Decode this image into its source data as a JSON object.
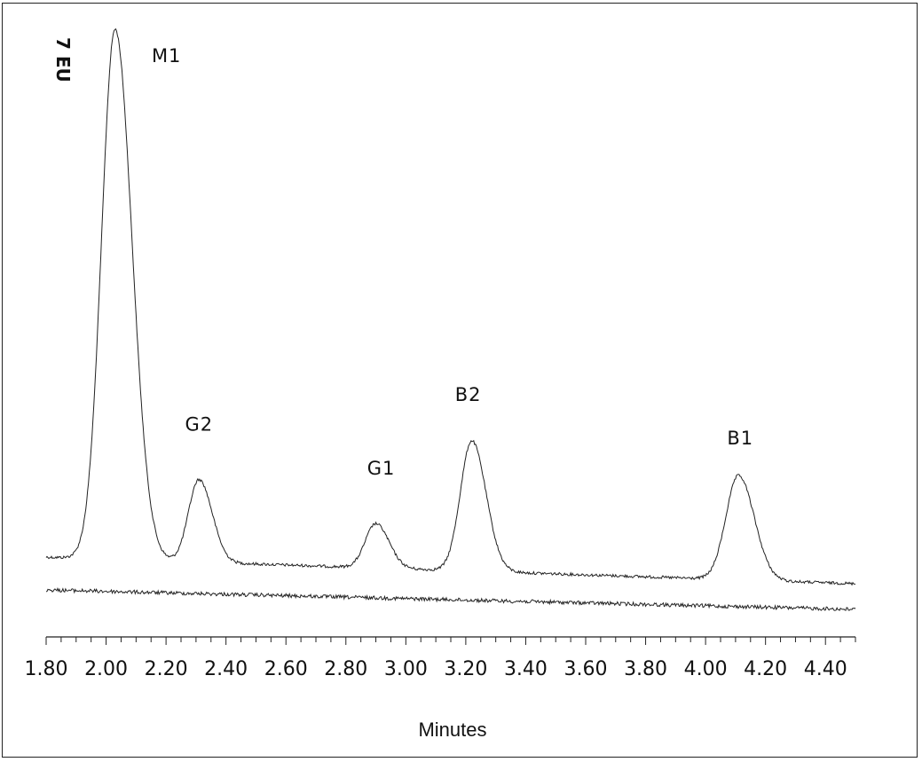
{
  "chart_data": {
    "type": "line",
    "xlabel": "Minutes",
    "ylabel": "7 EU",
    "xlim": [
      1.8,
      4.5
    ],
    "x_ticks": [
      "1.80",
      "2.00",
      "2.20",
      "2.40",
      "2.60",
      "2.80",
      "3.00",
      "3.20",
      "3.40",
      "3.60",
      "3.80",
      "4.00",
      "4.20",
      "4.40"
    ],
    "grid": false,
    "series": [
      {
        "peaks": [
          {
            "name": "M1",
            "x": 2.03,
            "height": 6.1,
            "width": 0.045
          },
          {
            "name": "G2",
            "x": 2.31,
            "height": 0.95,
            "width": 0.035
          },
          {
            "name": "G1",
            "x": 2.9,
            "height": 0.51,
            "width": 0.035
          },
          {
            "name": "B2",
            "x": 3.22,
            "height": 1.5,
            "width": 0.038
          },
          {
            "name": "B1",
            "x": 4.11,
            "height": 1.2,
            "width": 0.042
          }
        ]
      },
      {}
    ],
    "annotations": [
      "M1",
      "G2",
      "G1",
      "B2",
      "B1"
    ]
  }
}
